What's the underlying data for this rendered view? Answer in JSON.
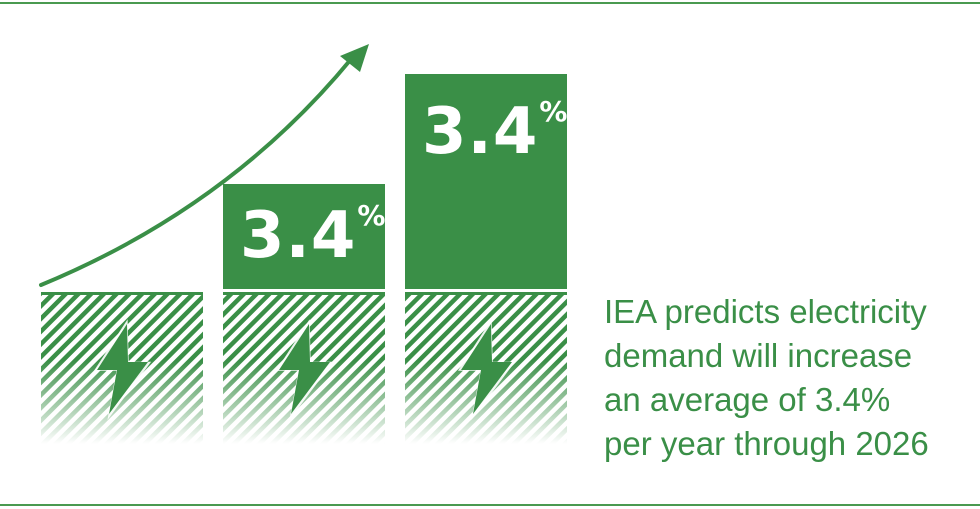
{
  "colors": {
    "primary": "#3a8f47",
    "rule": "#4a9a50",
    "text_on_bar": "#ffffff"
  },
  "bars": [
    {
      "label_value": "",
      "label_unit": "",
      "icon": "lightning-bolt-icon"
    },
    {
      "label_value": "3.4",
      "label_unit": "%",
      "icon": "lightning-bolt-icon"
    },
    {
      "label_value": "3.4",
      "label_unit": "%",
      "icon": "lightning-bolt-icon"
    }
  ],
  "arrow_icon": "trend-arrow-icon",
  "caption": {
    "lines": [
      "IEA predicts electricity",
      "demand will increase",
      "an average of 3.4%",
      "per year through 2026"
    ]
  }
}
